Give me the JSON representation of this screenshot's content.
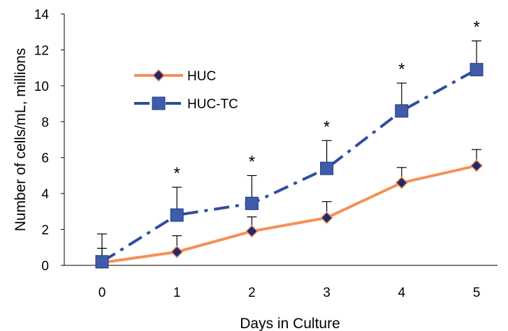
{
  "chart_data": {
    "type": "line",
    "title": "",
    "xlabel": "Days in Culture",
    "ylabel": "Number of cells/mL, millions",
    "x": [
      0,
      1,
      2,
      3,
      4,
      5
    ],
    "xlim": [
      0,
      5
    ],
    "ylim": [
      0,
      14
    ],
    "yticks": [
      0,
      2,
      4,
      6,
      8,
      10,
      12,
      14
    ],
    "grid": false,
    "legend_position": "upper-left",
    "series": [
      {
        "name": "HUC",
        "values": [
          0.15,
          0.75,
          1.9,
          2.65,
          4.6,
          5.55
        ],
        "error": [
          0.8,
          0.9,
          0.8,
          0.9,
          0.85,
          0.9
        ],
        "marker": "diamond",
        "line_style": "solid",
        "color": "#F39157",
        "marker_color": "#1F2A6B"
      },
      {
        "name": "HUC-TC",
        "values": [
          0.2,
          2.8,
          3.45,
          5.4,
          8.6,
          10.9
        ],
        "error": [
          1.55,
          1.55,
          1.55,
          1.55,
          1.55,
          1.6
        ],
        "marker": "square",
        "line_style": "dash-dot",
        "color": "#2F4D9E",
        "marker_color": "#3F5CAA"
      }
    ],
    "annotations": [
      {
        "x": 1,
        "text": "*"
      },
      {
        "x": 2,
        "text": "*"
      },
      {
        "x": 3,
        "text": "*"
      },
      {
        "x": 4,
        "text": "*"
      },
      {
        "x": 5,
        "text": "*"
      }
    ]
  }
}
